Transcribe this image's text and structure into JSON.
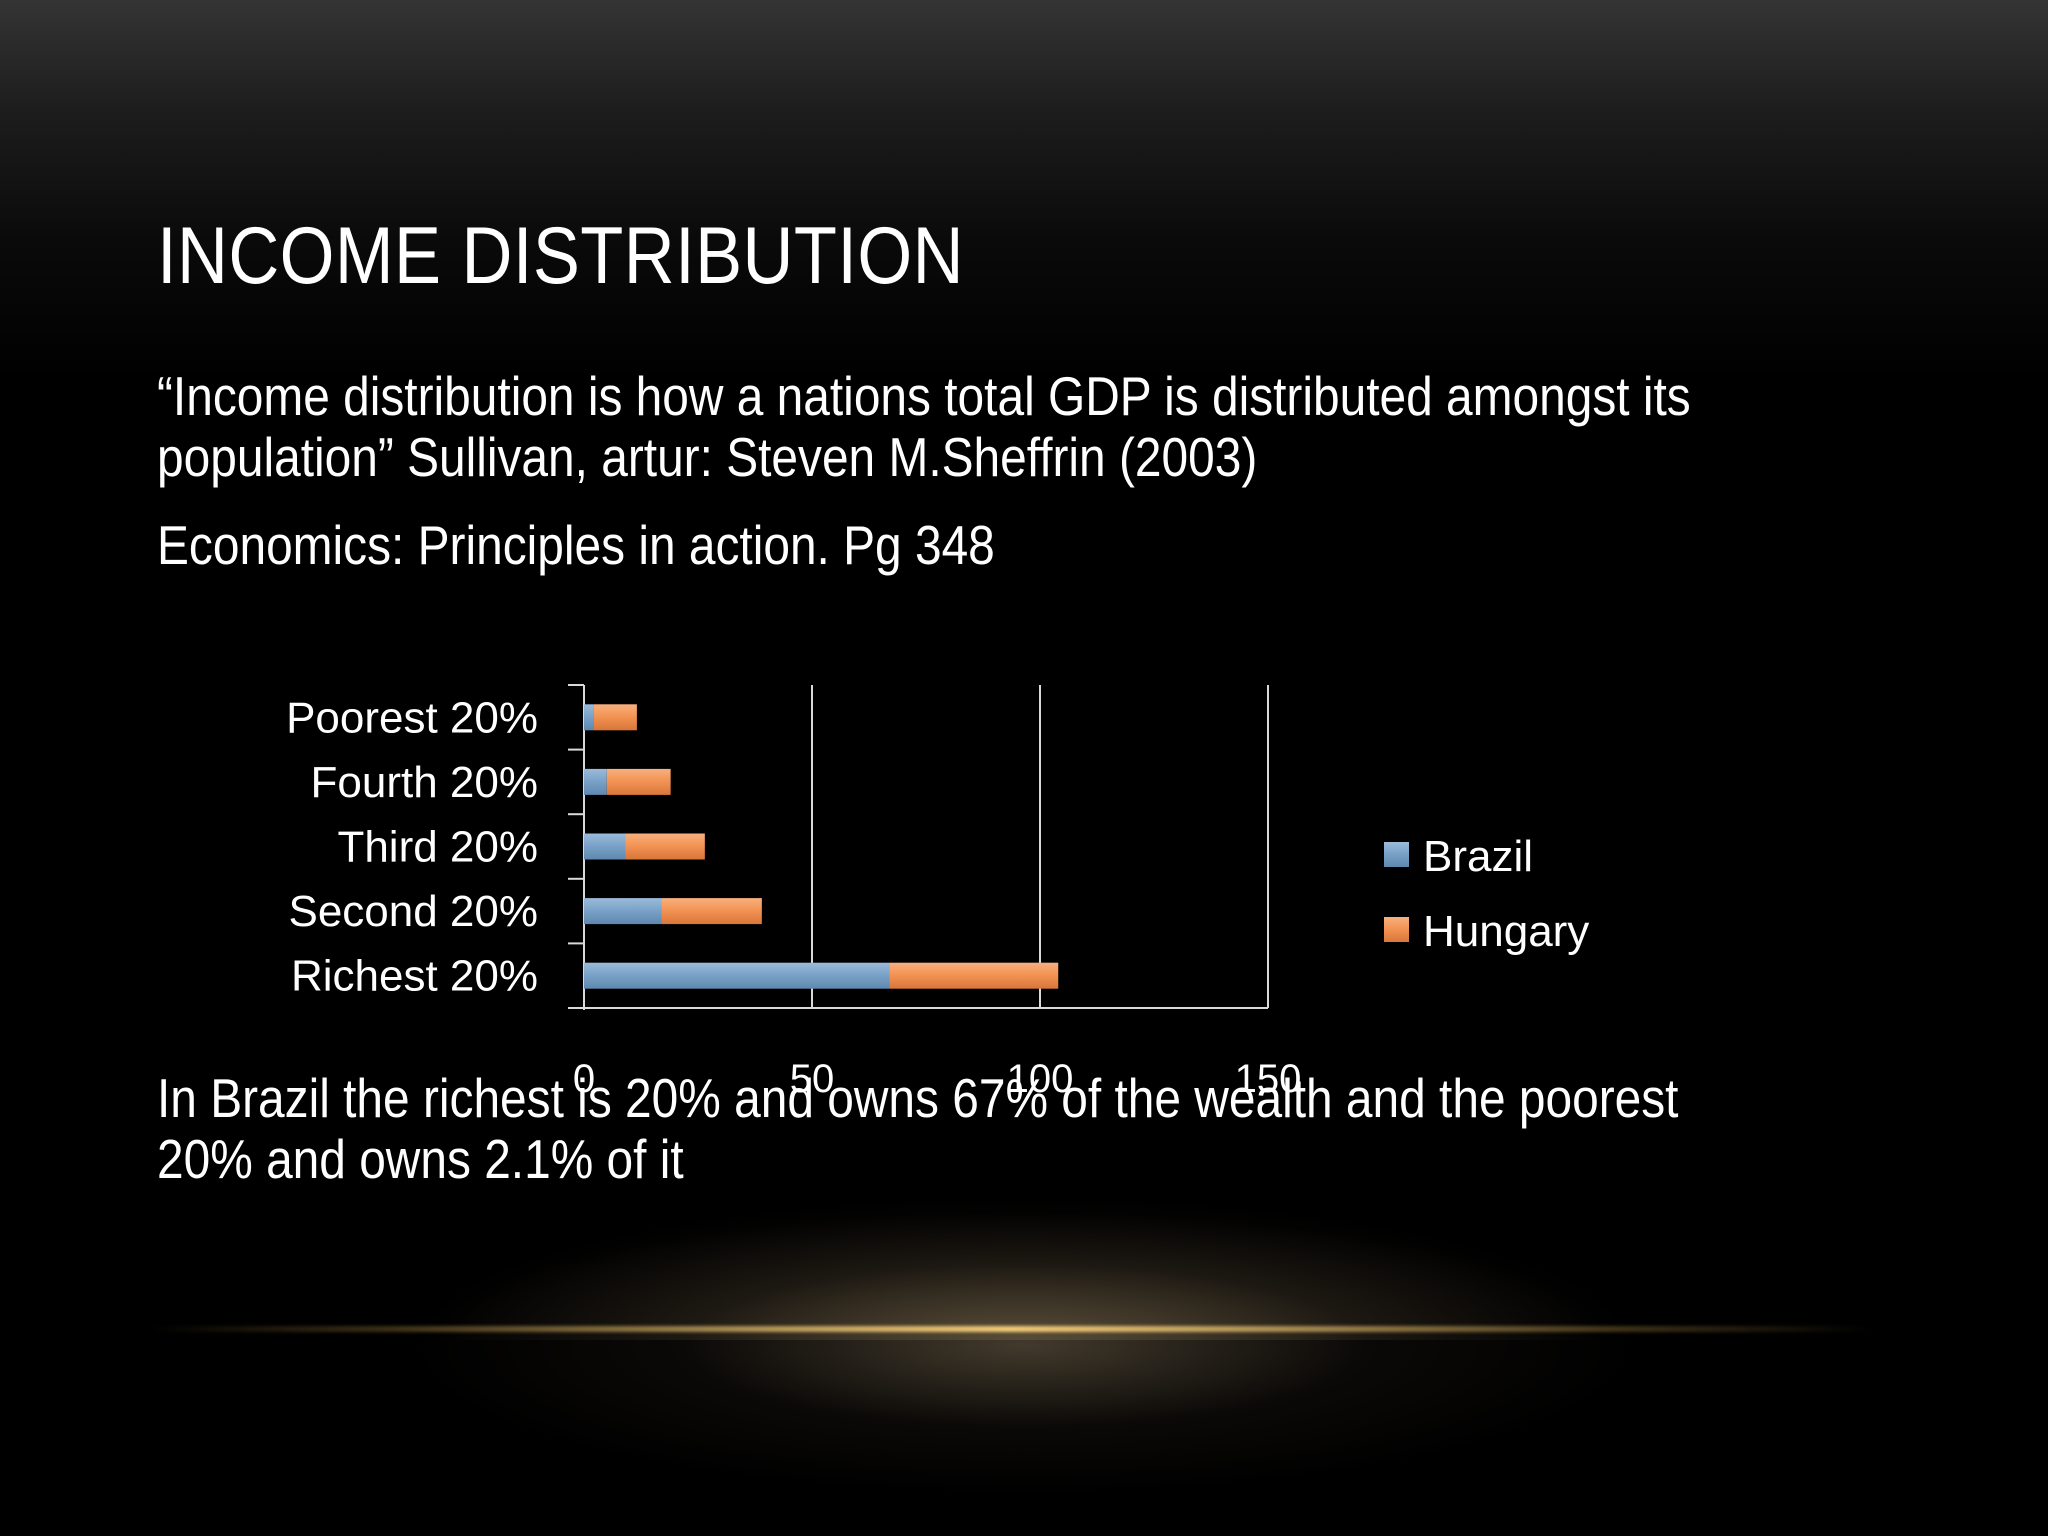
{
  "slide": {
    "title": "INCOME DISTRIBUTION",
    "quote_line1": "“Income distribution is how a nations total GDP is distributed amongst its",
    "quote_line2": "population” Sullivan, artur: Steven M.Sheffrin (2003)",
    "source": "Economics: Principles in action. Pg 348",
    "summary_line1": "In Brazil the richest is 20% and owns 67% of the wealth and the poorest",
    "summary_line2": "20% and owns 2.1% of it"
  },
  "chart_data": {
    "type": "bar",
    "orientation": "horizontal",
    "stacked": true,
    "categories": [
      "Poorest 20%",
      "Fourth 20%",
      "Third 20%",
      "Second 20%",
      "Richest 20%"
    ],
    "series": [
      {
        "name": "Brazil",
        "values": [
          2.1,
          5,
          9,
          17,
          67
        ],
        "color": "#7ba3c9"
      },
      {
        "name": "Hungary",
        "values": [
          9.5,
          14,
          17.5,
          22,
          37
        ],
        "color": "#f39455"
      }
    ],
    "x_ticks": [
      "0",
      "50",
      "100",
      "150"
    ],
    "xlim": [
      0,
      150
    ],
    "legend": "right",
    "grid": true
  }
}
